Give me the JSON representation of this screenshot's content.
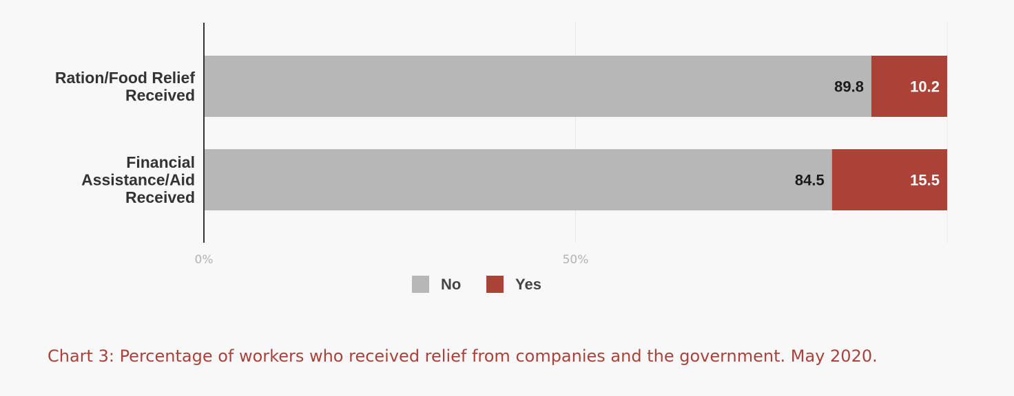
{
  "chart_data": {
    "type": "bar",
    "orientation": "horizontal",
    "stacked": true,
    "categories": [
      [
        "Ration/Food Relief",
        "Received"
      ],
      [
        "Financial",
        "Assistance/Aid",
        "Received"
      ]
    ],
    "series": [
      {
        "name": "No",
        "values": [
          89.8,
          84.5
        ],
        "color": "#b7b7b7",
        "label_color": "#1a1a1a"
      },
      {
        "name": "Yes",
        "values": [
          10.2,
          15.5
        ],
        "color": "#aa4238",
        "label_color": "#ffffff"
      }
    ],
    "x_ticks": [
      {
        "value": 0,
        "label": "0%"
      },
      {
        "value": 50,
        "label": "50%"
      }
    ],
    "xlim": [
      0,
      100
    ],
    "grid": true,
    "legend_position": "bottom",
    "caption": "Chart 3: Percentage of workers who received relief from companies and the government. May 2020."
  }
}
